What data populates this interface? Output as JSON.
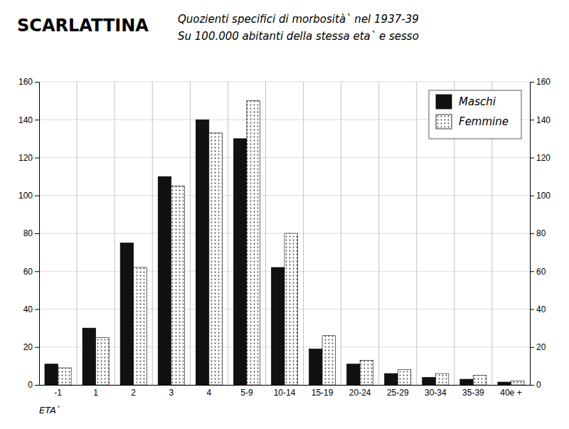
{
  "chart_data": {
    "type": "bar",
    "title": "SCARLATTINA",
    "subtitle": [
      "Quozienti specifici di morbosità` nel 1937-39",
      "Su 100.000 abitanti della stessa eta` e sesso"
    ],
    "x_label": "ETA`",
    "categories": [
      "-1",
      "1",
      "2",
      "3",
      "4",
      "5-9",
      "10-14",
      "15-19",
      "20-24",
      "25-29",
      "30-34",
      "35-39",
      "40e +"
    ],
    "series": [
      {
        "name": "Maschi",
        "color": "#111111",
        "values": [
          11,
          30,
          75,
          110,
          140,
          130,
          62,
          19,
          11,
          6,
          4,
          3,
          1.5
        ]
      },
      {
        "name": "Femmine",
        "color": "#ffffff",
        "values": [
          9,
          25,
          62,
          105,
          133,
          150,
          80,
          26,
          13,
          8,
          6,
          5,
          2
        ]
      }
    ],
    "ylim": [
      0,
      160
    ],
    "yticks": [
      0,
      20,
      40,
      60,
      80,
      100,
      120,
      140,
      160
    ],
    "y2lim": [
      0,
      160
    ],
    "y2ticks": [
      0,
      20,
      40,
      60,
      80,
      100,
      120,
      140,
      160
    ],
    "grid": true,
    "legend": "upper right"
  }
}
